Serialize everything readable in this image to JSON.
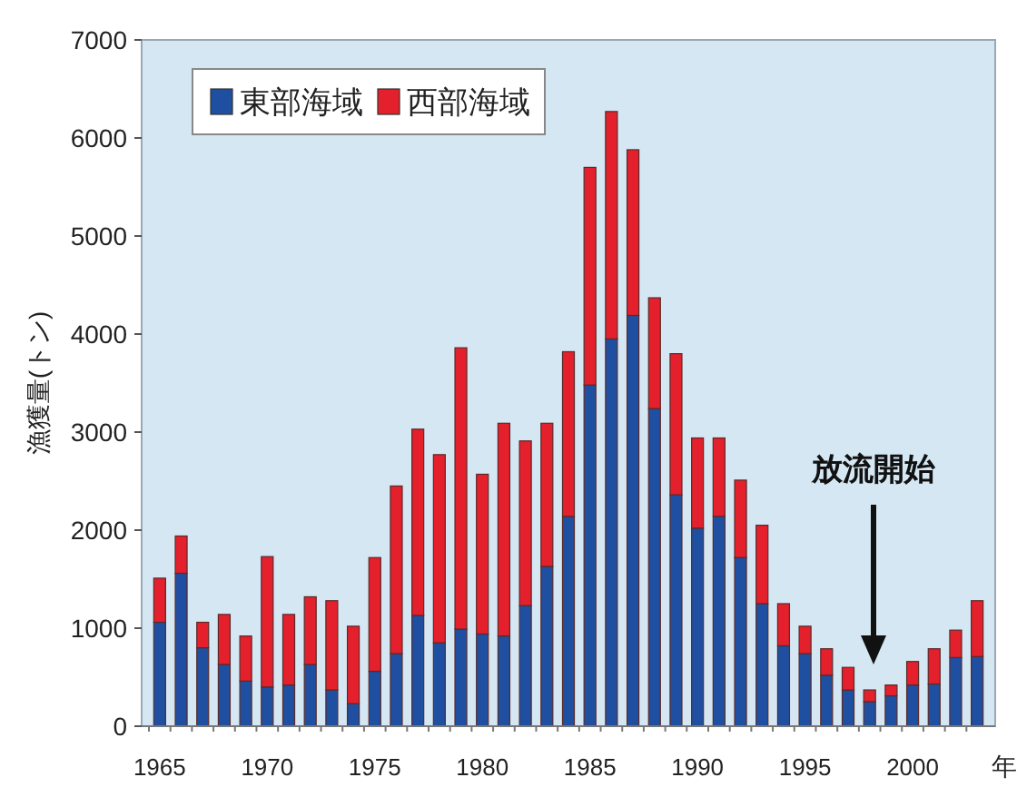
{
  "chart_data": {
    "type": "bar",
    "stacked": true,
    "ylabel": "漁獲量(トン)",
    "xlabel": "年",
    "categories": [
      "1965",
      null,
      null,
      null,
      null,
      "1970",
      null,
      null,
      null,
      null,
      "1975",
      null,
      null,
      null,
      null,
      "1980",
      null,
      null,
      null,
      null,
      "1985",
      null,
      null,
      null,
      null,
      "1990",
      null,
      null,
      null,
      null,
      "1995",
      null,
      null,
      null,
      null,
      "2000",
      null,
      null,
      null
    ],
    "series": [
      {
        "name": "東部海域",
        "color": "#1f4fa0",
        "values": [
          1060,
          1560,
          800,
          630,
          460,
          400,
          420,
          630,
          370,
          230,
          560,
          740,
          1130,
          850,
          990,
          940,
          920,
          1230,
          1630,
          2140,
          3480,
          3950,
          4190,
          3240,
          2360,
          2020,
          2140,
          1720,
          1250,
          820,
          740,
          520,
          370,
          250,
          310,
          420,
          430,
          700,
          710
        ]
      },
      {
        "name": "西部海域",
        "color": "#e3202b",
        "values": [
          450,
          380,
          260,
          510,
          460,
          1330,
          720,
          690,
          910,
          790,
          1160,
          1710,
          1900,
          1920,
          2870,
          1630,
          2170,
          1680,
          1460,
          1680,
          2220,
          2320,
          1690,
          1130,
          1440,
          920,
          800,
          790,
          800,
          430,
          280,
          270,
          230,
          120,
          110,
          240,
          360,
          280,
          570
        ]
      }
    ],
    "ylim": [
      0,
      7000
    ],
    "yticks": [
      0,
      1000,
      2000,
      3000,
      4000,
      5000,
      6000,
      7000
    ],
    "legend": "top left",
    "annotations": [
      "放流開始"
    ]
  }
}
